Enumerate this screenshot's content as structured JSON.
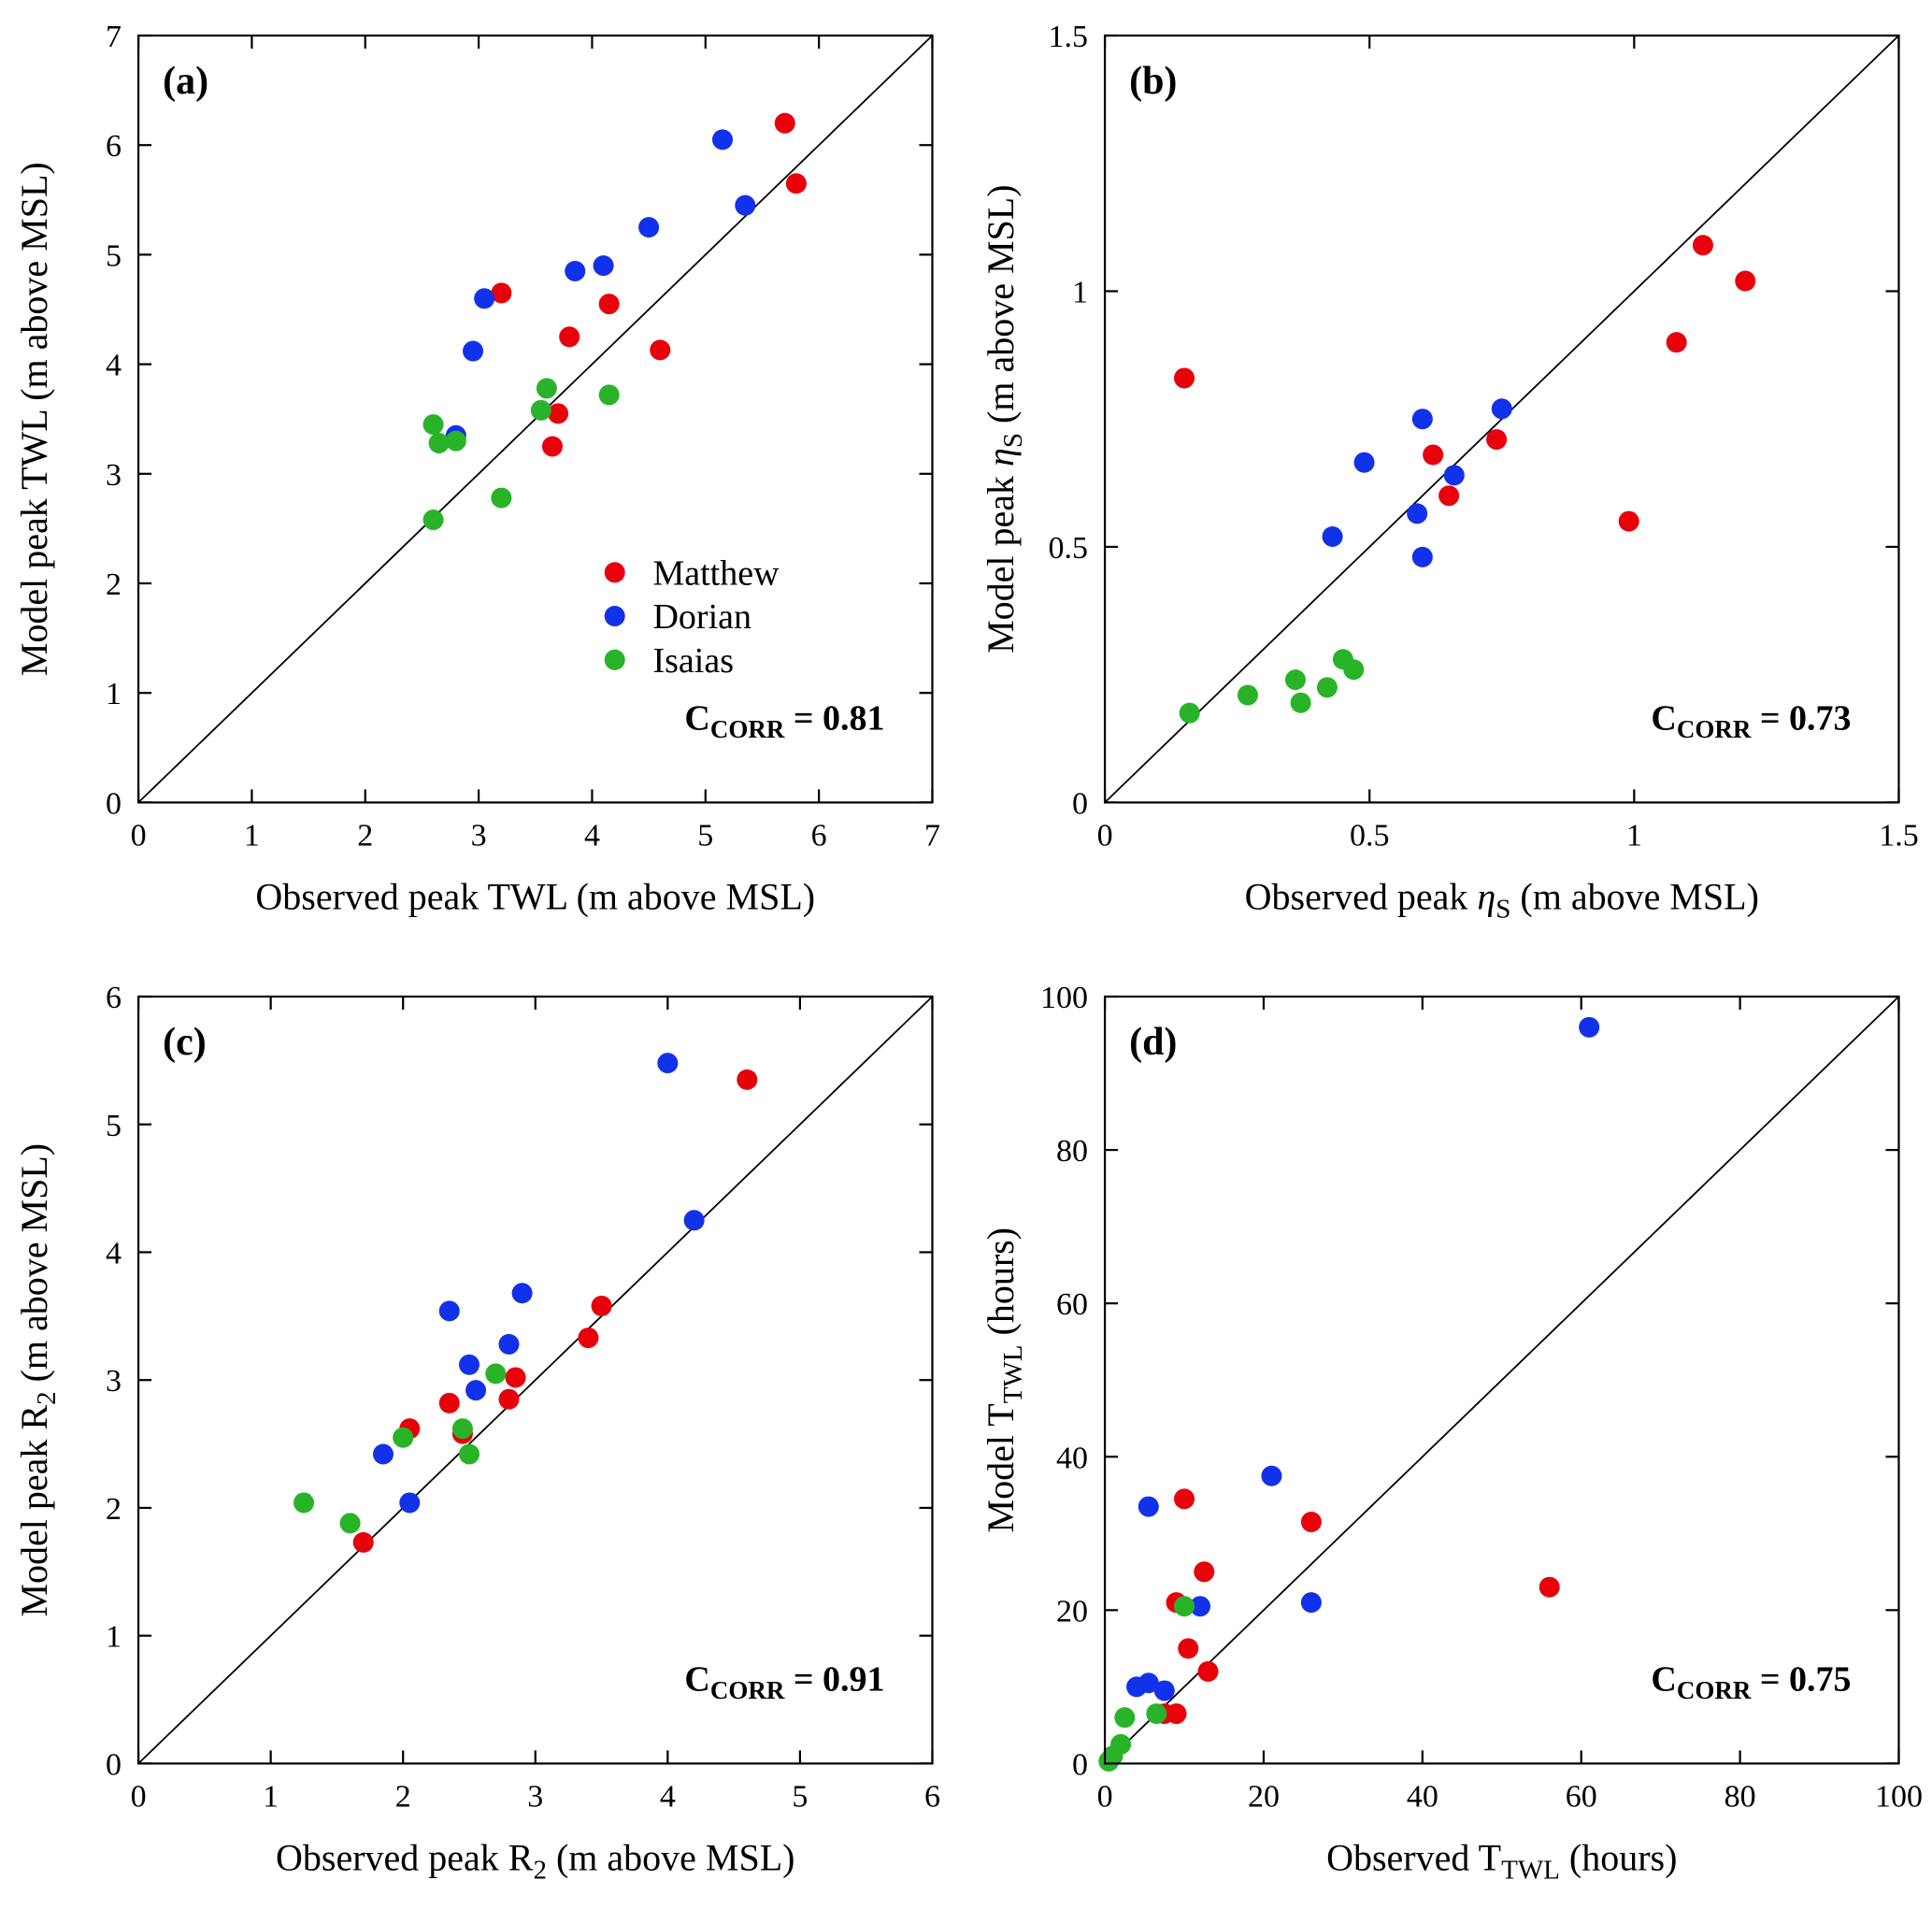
{
  "figure": {
    "background": "#ffffff",
    "axis_color": "#000000",
    "identity_line_color": "#000000",
    "series_colors": {
      "Matthew": "#e8000b",
      "Dorian": "#1231ea",
      "Isaias": "#29b329"
    },
    "legend_entries": [
      "Matthew",
      "Dorian",
      "Isaias"
    ]
  },
  "chart_data": [
    {
      "id": "a",
      "type": "scatter",
      "panel_label": "(a)",
      "xlabel": "Observed peak TWL (m above MSL)",
      "ylabel": "Model peak TWL (m above MSL)",
      "xlim": [
        0,
        7
      ],
      "ylim": [
        0,
        7
      ],
      "xticks": [
        0,
        1,
        2,
        3,
        4,
        5,
        6,
        7
      ],
      "yticks": [
        0,
        1,
        2,
        3,
        4,
        5,
        6,
        7
      ],
      "identity_line": true,
      "annotation": "C_{CORR} = 0.81",
      "ccorr": 0.81,
      "legend": {
        "fx": 0.6,
        "label_fx": 0.648,
        "fy": [
          0.7,
          0.757,
          0.814
        ]
      },
      "series": [
        {
          "name": "Matthew",
          "color": "#e8000b",
          "points": [
            [
              3.2,
              4.65
            ],
            [
              5.7,
              6.2
            ],
            [
              5.8,
              5.65
            ],
            [
              4.15,
              4.55
            ],
            [
              4.6,
              4.13
            ],
            [
              3.8,
              4.25
            ],
            [
              3.65,
              3.25
            ],
            [
              3.7,
              3.55
            ]
          ]
        },
        {
          "name": "Dorian",
          "color": "#1231ea",
          "points": [
            [
              3.05,
              4.6
            ],
            [
              2.95,
              4.12
            ],
            [
              5.15,
              6.05
            ],
            [
              5.35,
              5.45
            ],
            [
              4.5,
              5.25
            ],
            [
              3.85,
              4.85
            ],
            [
              4.1,
              4.9
            ],
            [
              2.8,
              3.35
            ]
          ]
        },
        {
          "name": "Isaias",
          "color": "#29b329",
          "points": [
            [
              2.6,
              3.45
            ],
            [
              2.65,
              3.28
            ],
            [
              2.8,
              3.3
            ],
            [
              3.6,
              3.78
            ],
            [
              3.55,
              3.58
            ],
            [
              4.15,
              3.72
            ],
            [
              3.2,
              2.78
            ],
            [
              2.6,
              2.58
            ]
          ]
        }
      ]
    },
    {
      "id": "b",
      "type": "scatter",
      "panel_label": "(b)",
      "xlabel": "Observed peak *η*_{S} (m above MSL)",
      "ylabel": "Model peak *η*_{S} (m above MSL)",
      "xlim": [
        0,
        1.5
      ],
      "ylim": [
        0,
        1.5
      ],
      "xticks": [
        0,
        0.5,
        1,
        1.5
      ],
      "yticks": [
        0,
        0.5,
        1,
        1.5
      ],
      "identity_line": true,
      "annotation": "C_{CORR} = 0.73",
      "ccorr": 0.73,
      "series": [
        {
          "name": "Matthew",
          "color": "#e8000b",
          "points": [
            [
              0.15,
              0.83
            ],
            [
              1.13,
              1.09
            ],
            [
              1.21,
              1.02
            ],
            [
              1.08,
              0.9
            ],
            [
              0.99,
              0.55
            ],
            [
              0.62,
              0.68
            ],
            [
              0.65,
              0.6
            ],
            [
              0.74,
              0.71
            ]
          ]
        },
        {
          "name": "Dorian",
          "color": "#1231ea",
          "points": [
            [
              0.6,
              0.75
            ],
            [
              0.49,
              0.665
            ],
            [
              0.43,
              0.52
            ],
            [
              0.59,
              0.565
            ],
            [
              0.6,
              0.48
            ],
            [
              0.66,
              0.64
            ],
            [
              0.75,
              0.77
            ]
          ]
        },
        {
          "name": "Isaias",
          "color": "#29b329",
          "points": [
            [
              0.16,
              0.175
            ],
            [
              0.27,
              0.21
            ],
            [
              0.36,
              0.24
            ],
            [
              0.37,
              0.195
            ],
            [
              0.42,
              0.225
            ],
            [
              0.45,
              0.28
            ],
            [
              0.47,
              0.26
            ]
          ]
        }
      ]
    },
    {
      "id": "c",
      "type": "scatter",
      "panel_label": "(c)",
      "xlabel": "Observed peak R_{2} (m above MSL)",
      "ylabel": "Model peak R_{2} (m above MSL)",
      "xlim": [
        0,
        6
      ],
      "ylim": [
        0,
        6
      ],
      "xticks": [
        0,
        1,
        2,
        3,
        4,
        5,
        6
      ],
      "yticks": [
        0,
        1,
        2,
        3,
        4,
        5,
        6
      ],
      "identity_line": true,
      "annotation": "C_{CORR} = 0.91",
      "ccorr": 0.91,
      "series": [
        {
          "name": "Matthew",
          "color": "#e8000b",
          "points": [
            [
              1.7,
              1.73
            ],
            [
              2.05,
              2.62
            ],
            [
              2.35,
              2.82
            ],
            [
              2.45,
              2.58
            ],
            [
              2.8,
              2.85
            ],
            [
              2.85,
              3.02
            ],
            [
              3.4,
              3.33
            ],
            [
              3.5,
              3.58
            ],
            [
              4.6,
              5.35
            ]
          ]
        },
        {
          "name": "Dorian",
          "color": "#1231ea",
          "points": [
            [
              1.85,
              2.42
            ],
            [
              2.05,
              2.04
            ],
            [
              2.35,
              3.54
            ],
            [
              2.5,
              3.12
            ],
            [
              2.55,
              2.92
            ],
            [
              2.8,
              3.28
            ],
            [
              2.9,
              3.68
            ],
            [
              4.0,
              5.48
            ],
            [
              4.2,
              4.25
            ]
          ]
        },
        {
          "name": "Isaias",
          "color": "#29b329",
          "points": [
            [
              1.25,
              2.04
            ],
            [
              1.6,
              1.88
            ],
            [
              2.0,
              2.55
            ],
            [
              2.45,
              2.62
            ],
            [
              2.5,
              2.42
            ],
            [
              2.7,
              3.05
            ]
          ]
        }
      ]
    },
    {
      "id": "d",
      "type": "scatter",
      "panel_label": "(d)",
      "xlabel": "Observed T_{TWL} (hours)",
      "ylabel": "Model T_{TWL} (hours)",
      "xlim": [
        0,
        100
      ],
      "ylim": [
        0,
        100
      ],
      "xticks": [
        0,
        20,
        40,
        60,
        80,
        100
      ],
      "yticks": [
        0,
        20,
        40,
        60,
        80,
        100
      ],
      "identity_line": true,
      "annotation": "C_{CORR} = 0.75",
      "ccorr": 0.75,
      "series": [
        {
          "name": "Matthew",
          "color": "#e8000b",
          "points": [
            [
              10,
              34.5
            ],
            [
              26,
              31.5
            ],
            [
              12.5,
              25
            ],
            [
              56,
              23
            ],
            [
              9,
              21
            ],
            [
              10.5,
              15
            ],
            [
              13,
              12
            ],
            [
              7.5,
              6.5
            ],
            [
              9,
              6.5
            ]
          ]
        },
        {
          "name": "Dorian",
          "color": "#1231ea",
          "points": [
            [
              61,
              96
            ],
            [
              5.5,
              33.5
            ],
            [
              21,
              37.5
            ],
            [
              26,
              21
            ],
            [
              12,
              20.5
            ],
            [
              4,
              10
            ],
            [
              5.5,
              10.5
            ],
            [
              7.5,
              9.5
            ]
          ]
        },
        {
          "name": "Isaias",
          "color": "#29b329",
          "points": [
            [
              10,
              20.5
            ],
            [
              6.5,
              6.5
            ],
            [
              2,
              2.5
            ],
            [
              1,
              1
            ],
            [
              0.5,
              0.3
            ],
            [
              2.5,
              6
            ]
          ]
        }
      ]
    }
  ]
}
